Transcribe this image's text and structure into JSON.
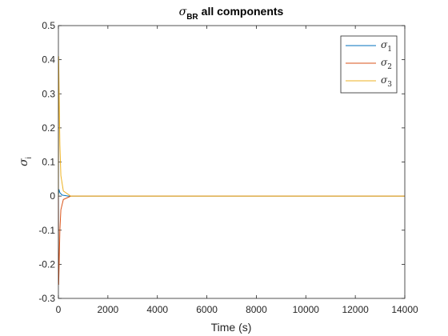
{
  "chart_data": {
    "type": "line",
    "title": "σBR all components",
    "title_parts": {
      "symbol": "σ",
      "subscript": "BR",
      "rest": "all components"
    },
    "xlabel": "Time (s)",
    "ylabel": "σi",
    "ylabel_parts": {
      "symbol": "σ",
      "subscript": "i"
    },
    "xlim": [
      0,
      14000
    ],
    "ylim": [
      -0.3,
      0.5
    ],
    "xticks": [
      0,
      2000,
      4000,
      6000,
      8000,
      10000,
      12000,
      14000
    ],
    "xtick_labels": [
      "0",
      "2000",
      "4000",
      "6000",
      "8000",
      "10000",
      "12000",
      "14000"
    ],
    "yticks": [
      -0.3,
      -0.2,
      -0.1,
      0,
      0.1,
      0.2,
      0.3,
      0.4,
      0.5
    ],
    "ytick_labels": [
      "-0.3",
      "-0.2",
      "-0.1",
      "0",
      "0.1",
      "0.2",
      "0.3",
      "0.4",
      "0.5"
    ],
    "grid": false,
    "legend_position": "top-right",
    "series": [
      {
        "name": "σ1",
        "label_symbol": "σ",
        "label_sub": "1",
        "color": "#0072BD",
        "x": [
          0,
          20,
          60,
          150,
          400,
          1000,
          14000
        ],
        "y": [
          0,
          0.02,
          0.01,
          0.003,
          0,
          0,
          0
        ]
      },
      {
        "name": "σ2",
        "label_symbol": "σ",
        "label_sub": "2",
        "color": "#D95319",
        "x": [
          0,
          10,
          30,
          60,
          100,
          200,
          500,
          1000,
          14000
        ],
        "y": [
          0,
          -0.26,
          -0.2,
          -0.1,
          -0.04,
          -0.01,
          0,
          0,
          0
        ]
      },
      {
        "name": "σ3",
        "label_symbol": "σ",
        "label_sub": "3",
        "color": "#EDB120",
        "x": [
          0,
          10,
          30,
          60,
          100,
          200,
          500,
          1000,
          14000
        ],
        "y": [
          0,
          0.41,
          0.3,
          0.15,
          0.06,
          0.015,
          0,
          0,
          0
        ]
      }
    ]
  }
}
